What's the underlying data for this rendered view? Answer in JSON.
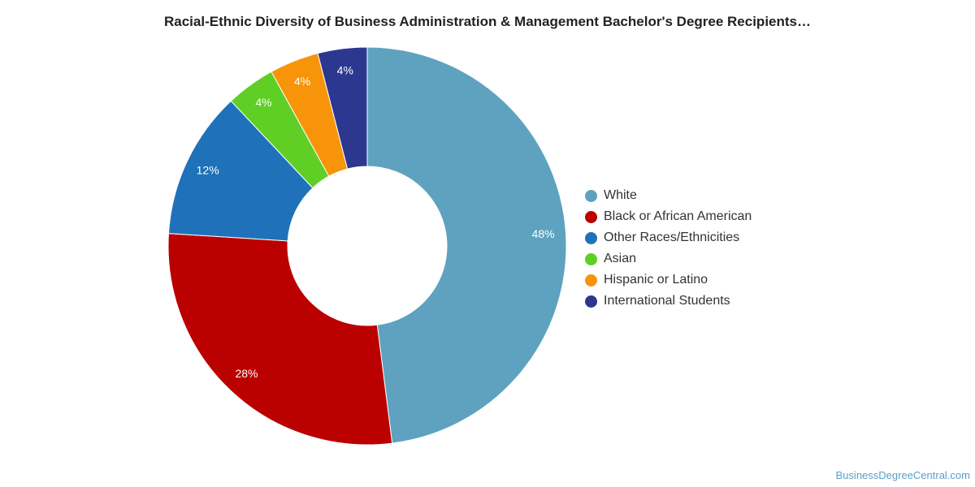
{
  "chart_data": {
    "type": "pie",
    "title": "Racial-Ethnic Diversity of Business Administration & Management Bachelor's Degree Recipients…",
    "categories": [
      "White",
      "Black or African American",
      "Other Races/Ethnicities",
      "Asian",
      "Hispanic or Latino",
      "International Students"
    ],
    "values": [
      48,
      28,
      12,
      4,
      4,
      4
    ],
    "value_labels": [
      "48%",
      "28%",
      "12%",
      "4%",
      "4%",
      "4%"
    ],
    "colors": [
      "#5ea2bf",
      "#bb0000",
      "#1f72b9",
      "#5fcf25",
      "#f7940a",
      "#2c3890"
    ],
    "donut": true,
    "legend_position": "right"
  },
  "watermark": "BusinessDegreeCentral.com"
}
